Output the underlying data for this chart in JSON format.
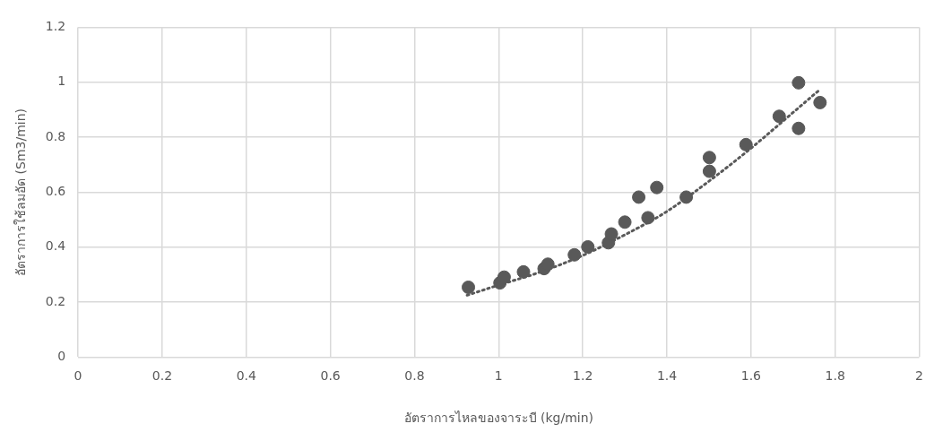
{
  "chart_data": {
    "type": "scatter",
    "xlabel": "อัตราการไหลของจาระบี (kg/min)",
    "ylabel": "อัตราการใช้ลมอัด (Sm3/min)",
    "xlim": [
      0,
      2
    ],
    "xticks": [
      0,
      0.2,
      0.4,
      0.6,
      0.8,
      1,
      1.2,
      1.4,
      1.6,
      1.8,
      2
    ],
    "ylim": [
      0,
      1.2
    ],
    "yticks": [
      0,
      0.2,
      0.4,
      0.6,
      0.8,
      1,
      1.2
    ],
    "grid": true,
    "marker": "circle",
    "series": [
      {
        "type": "scatter",
        "color": "#595959",
        "x": [
          0.928,
          1.003,
          1.013,
          1.059,
          1.108,
          1.117,
          1.18,
          1.212,
          1.261,
          1.268,
          1.3,
          1.355,
          1.333,
          1.376,
          1.446,
          1.501,
          1.501,
          1.588,
          1.667,
          1.713,
          1.713,
          1.764
        ],
        "values": [
          0.254,
          0.27,
          0.291,
          0.31,
          0.322,
          0.338,
          0.372,
          0.401,
          0.416,
          0.448,
          0.491,
          0.507,
          0.582,
          0.617,
          0.582,
          0.676,
          0.726,
          0.773,
          0.876,
          0.832,
          0.998,
          0.926
        ]
      },
      {
        "type": "line",
        "color": "#595959",
        "line_style": "dotted",
        "marker": "none",
        "x": [
          0.925,
          1.0,
          1.1,
          1.2,
          1.3,
          1.4,
          1.5,
          1.6,
          1.7,
          1.765
        ],
        "values": [
          0.225,
          0.262,
          0.31,
          0.37,
          0.445,
          0.53,
          0.64,
          0.76,
          0.89,
          0.975
        ]
      }
    ]
  }
}
